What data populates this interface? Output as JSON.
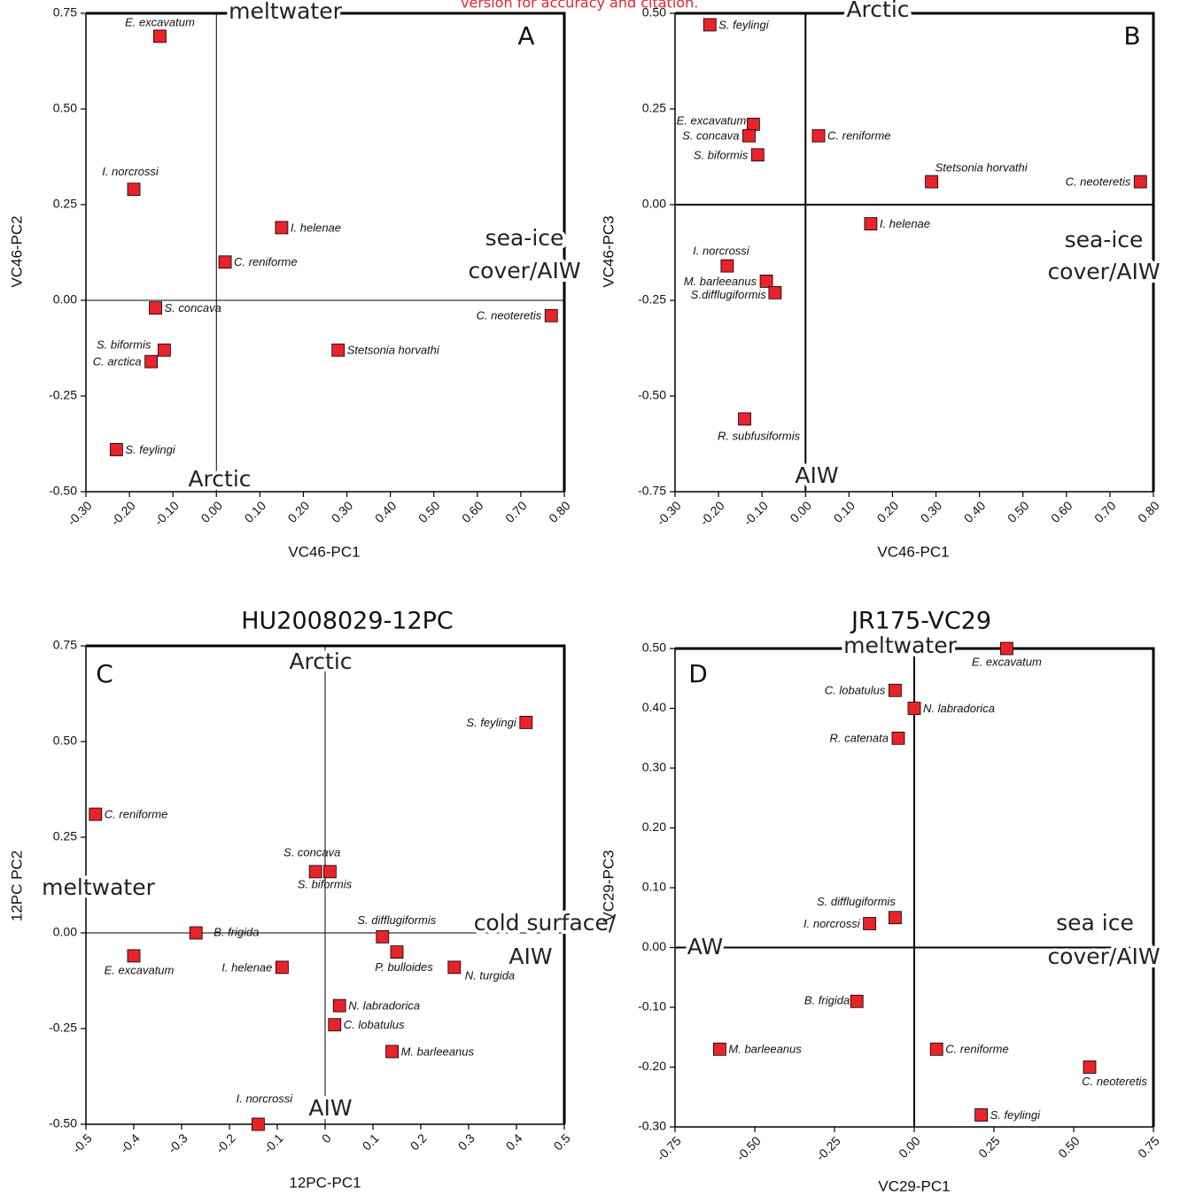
{
  "note": "version for accuracy and citation.",
  "chart_data": [
    {
      "type": "scatter",
      "panel_label": "A",
      "x_label": "VC46-PC1",
      "y_label": "VC46-PC2",
      "color": "#e8232a",
      "annotations": [
        "meltwater",
        "Arctic",
        [
          "sea-ice",
          "cover/AIW"
        ]
      ],
      "point_labels": [
        "E. excavatum",
        "I. norcrossi",
        "I. helenae",
        "C. reniforme",
        "S. concava",
        "C. neoteretis",
        "Stetsonia horvathi",
        "S. biformis",
        "C. arctica",
        "S. feylingi"
      ],
      "x": [
        -0.13,
        -0.19,
        0.15,
        0.02,
        -0.14,
        0.77,
        0.28,
        -0.12,
        -0.15,
        -0.23
      ],
      "values": [
        0.69,
        0.29,
        0.19,
        0.1,
        -0.02,
        -0.04,
        -0.13,
        -0.13,
        -0.16,
        -0.39
      ],
      "xlim": [
        -0.3,
        0.8
      ],
      "ylim": [
        -0.5,
        0.75
      ],
      "xticks": [
        {
          "value": -0.3,
          "label": "-0.30"
        },
        {
          "value": -0.2,
          "label": "-0.20"
        },
        {
          "value": -0.1,
          "label": "-0.10"
        },
        {
          "value": 0,
          "label": "0.00"
        },
        {
          "value": 0.1,
          "label": "0.10"
        },
        {
          "value": 0.2,
          "label": "0.20"
        },
        {
          "value": 0.3,
          "label": "0.30"
        },
        {
          "value": 0.4,
          "label": "0.40"
        },
        {
          "value": 0.5,
          "label": "0.50"
        },
        {
          "value": 0.6,
          "label": "0.60"
        },
        {
          "value": 0.7,
          "label": "0.70"
        },
        {
          "value": 0.8,
          "label": "0.80"
        }
      ],
      "yticks": [
        0.75,
        {
          "value": 0.5,
          "label": "0.50"
        },
        0.25,
        {
          "value": 0,
          "label": "0.00"
        },
        -0.25,
        {
          "value": -0.5,
          "label": "-0.50"
        }
      ]
    },
    {
      "type": "scatter",
      "panel_label": "B",
      "x_label": "VC46-PC1",
      "y_label": "VC46-PC3",
      "color": "#e8232a",
      "annotations": [
        "Arctic",
        "AIW",
        [
          "sea-ice",
          "cover/AIW"
        ]
      ],
      "point_labels": [
        "S. feylingi",
        "E. excavatum",
        "S. concava",
        "C. reniforme",
        "S. biformis",
        "Stetsonia horvathi",
        "C. neoteretis",
        "I. helenae",
        "I. norcrossi",
        "M. barleeanus",
        "S.difflugiformis",
        "R. subfusiformis"
      ],
      "x": [
        -0.22,
        -0.12,
        -0.13,
        0.03,
        -0.11,
        0.29,
        0.77,
        0.15,
        -0.18,
        -0.09,
        -0.07,
        -0.14
      ],
      "values": [
        0.47,
        0.21,
        0.18,
        0.18,
        0.13,
        0.06,
        0.06,
        -0.05,
        -0.16,
        -0.2,
        -0.23,
        -0.56
      ],
      "xlim": [
        -0.3,
        0.8
      ],
      "ylim": [
        -0.75,
        0.5
      ],
      "xticks": [
        {
          "value": -0.3,
          "label": "-0.30"
        },
        {
          "value": -0.2,
          "label": "-0.20"
        },
        {
          "value": -0.1,
          "label": "-0.10"
        },
        {
          "value": 0,
          "label": "0.00"
        },
        {
          "value": 0.1,
          "label": "0.10"
        },
        {
          "value": 0.2,
          "label": "0.20"
        },
        {
          "value": 0.3,
          "label": "0.30"
        },
        {
          "value": 0.4,
          "label": "0.40"
        },
        {
          "value": 0.5,
          "label": "0.50"
        },
        {
          "value": 0.6,
          "label": "0.60"
        },
        {
          "value": 0.7,
          "label": "0.70"
        },
        {
          "value": 0.8,
          "label": "0.80"
        }
      ],
      "yticks": [
        {
          "value": 0.5,
          "label": "0.50"
        },
        0.25,
        {
          "value": 0,
          "label": "0.00"
        },
        -0.25,
        {
          "value": -0.5,
          "label": "-0.50"
        },
        -0.75
      ]
    },
    {
      "type": "scatter",
      "title": "HU2008029-12PC",
      "panel_label": "C",
      "x_label": "12PC-PC1",
      "y_label": "12PC PC2",
      "color": "#e8232a",
      "annotations": [
        "Arctic",
        "meltwater",
        [
          "cold surface/",
          "AIW"
        ],
        "AIW"
      ],
      "point_labels": [
        "S. feylingi",
        "C. reniforme",
        "S. concava",
        "S. biformis",
        "B. frigida",
        "S. difflugiformis",
        "E. excavatum",
        "P. bulloides",
        "I. helenae",
        "N. turgida",
        "N. labradorica",
        "C. lobatulus",
        "M. barleeanus",
        "I. norcrossi"
      ],
      "x": [
        0.42,
        -0.48,
        -0.02,
        0.01,
        -0.27,
        0.12,
        -0.4,
        0.15,
        -0.09,
        0.27,
        0.03,
        0.02,
        0.14,
        -0.14
      ],
      "values": [
        0.55,
        0.31,
        0.16,
        0.16,
        0.0,
        -0.01,
        -0.06,
        -0.05,
        -0.09,
        -0.09,
        -0.19,
        -0.24,
        -0.31,
        -0.5
      ],
      "xlim": [
        -0.5,
        0.5
      ],
      "ylim": [
        -0.5,
        0.75
      ],
      "xticks": [
        -0.5,
        -0.4,
        -0.3,
        -0.2,
        -0.1,
        0,
        0.1,
        0.2,
        0.3,
        0.4,
        0.5
      ],
      "yticks": [
        0.75,
        {
          "value": 0.5,
          "label": "0.50"
        },
        0.25,
        {
          "value": 0,
          "label": "0.00"
        },
        -0.25,
        {
          "value": -0.5,
          "label": "-0.50"
        }
      ]
    },
    {
      "type": "scatter",
      "title": "JR175-VC29",
      "panel_label": "D",
      "x_label": "VC29-PC1",
      "y_label": "VC29-PC3",
      "color": "#e8232a",
      "annotations": [
        "meltwater",
        "AW",
        [
          "sea ice",
          "cover/AIW"
        ]
      ],
      "point_labels": [
        "E. excavatum",
        "C. lobatulus",
        "N. labradorica",
        "R. catenata",
        "S. difflugiformis",
        "I. norcrossi",
        "B. frigida",
        "M. barleeanus",
        "C. reniforme",
        "C. neoteretis",
        "S. feylingi"
      ],
      "x": [
        0.29,
        -0.06,
        0.0,
        -0.05,
        -0.06,
        -0.14,
        -0.18,
        -0.61,
        0.07,
        0.55,
        0.21
      ],
      "values": [
        0.5,
        0.43,
        0.4,
        0.35,
        0.05,
        0.04,
        -0.09,
        -0.17,
        -0.17,
        -0.2,
        -0.28
      ],
      "xlim": [
        -0.75,
        0.75
      ],
      "ylim": [
        -0.3,
        0.5
      ],
      "xticks": [
        -0.75,
        {
          "value": -0.5,
          "label": "-0.50"
        },
        -0.25,
        {
          "value": 0,
          "label": "0.00"
        },
        0.25,
        {
          "value": 0.5,
          "label": "0.50"
        },
        0.75
      ],
      "yticks": [
        {
          "value": 0.5,
          "label": "0.50"
        },
        {
          "value": 0.4,
          "label": "0.40"
        },
        {
          "value": 0.3,
          "label": "0.30"
        },
        {
          "value": 0.2,
          "label": "0.20"
        },
        {
          "value": 0.1,
          "label": "0.10"
        },
        {
          "value": 0,
          "label": "0.00"
        },
        {
          "value": -0.1,
          "label": "-0.10"
        },
        {
          "value": -0.2,
          "label": "-0.20"
        },
        {
          "value": -0.3,
          "label": "-0.30"
        }
      ]
    }
  ]
}
